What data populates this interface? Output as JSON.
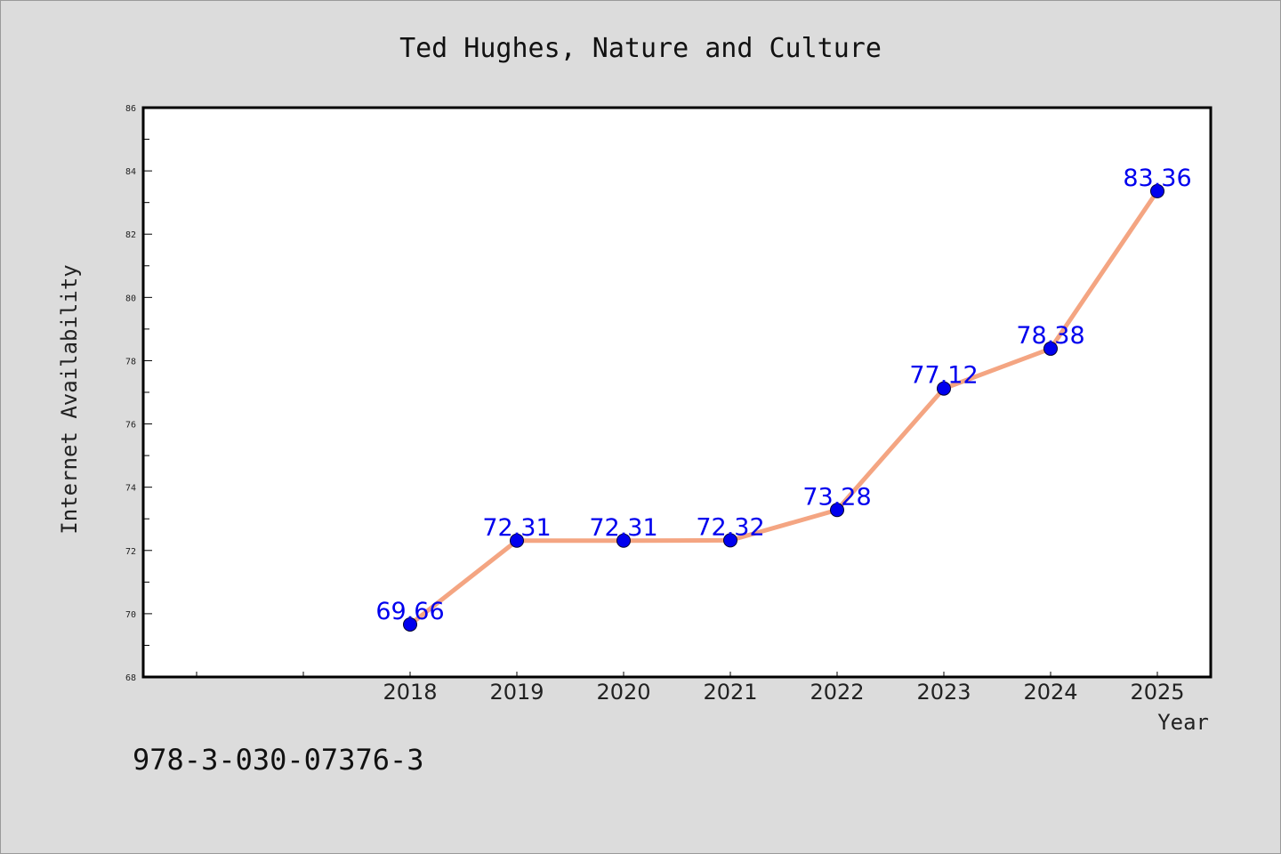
{
  "colors": {
    "background": "#dcdcdc",
    "plot_area": "#ffffff",
    "line": "#f4a582",
    "marker": "#0000ee",
    "data_label": "#0000ee"
  },
  "footer": {
    "isbn": "978-3-030-07376-3"
  },
  "chart_data": {
    "type": "line",
    "title": "Ted Hughes, Nature and Culture",
    "xlabel": "Year",
    "ylabel": "Internet Availability",
    "categories": [
      "2018",
      "2019",
      "2020",
      "2021",
      "2022",
      "2023",
      "2024",
      "2025"
    ],
    "series": [
      {
        "values": [
          69.66,
          72.31,
          72.31,
          72.32,
          73.28,
          77.12,
          78.38,
          83.36
        ],
        "labels": [
          "69.66",
          "72.31",
          "72.31",
          "72.32",
          "73.28",
          "77.12",
          "78.38",
          "83.36"
        ]
      }
    ],
    "ylim": [
      68,
      86
    ],
    "yticks": [
      "68",
      "70",
      "72",
      "74",
      "76",
      "78",
      "80",
      "82",
      "84",
      "86"
    ],
    "grid": false,
    "legend": "none"
  }
}
